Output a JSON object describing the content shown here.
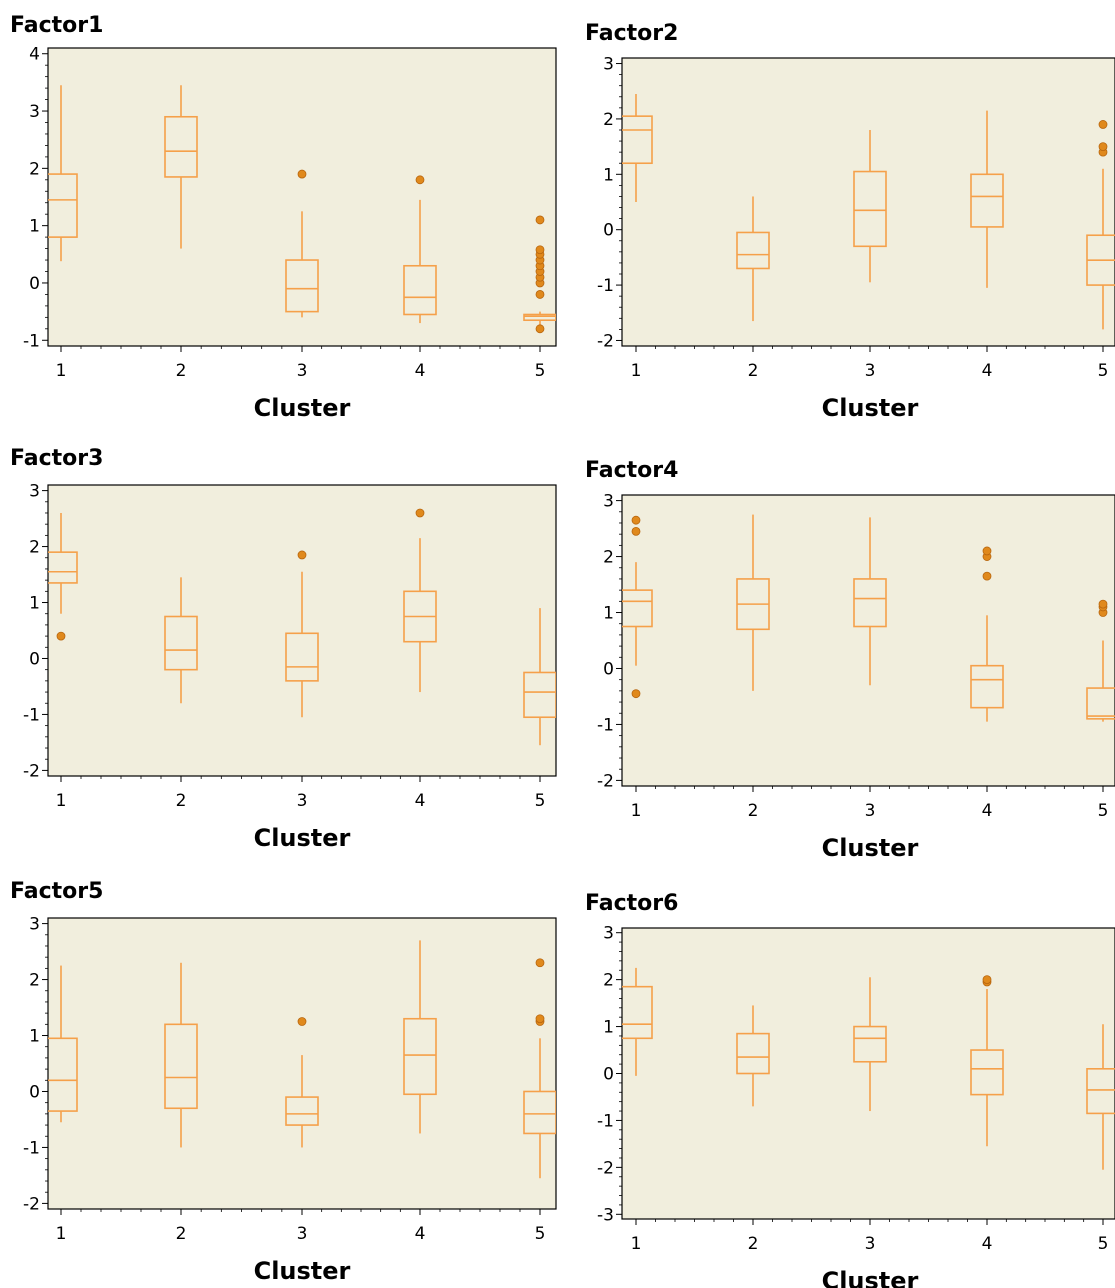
{
  "chart_data": [
    {
      "type": "box",
      "title": "Factor1",
      "xlabel": "Cluster",
      "categories": [
        "1",
        "2",
        "3",
        "4",
        "5"
      ],
      "ylim": [
        -1.1,
        4.1
      ],
      "yticks": [
        "-1",
        "0",
        "1",
        "2",
        "3",
        "4"
      ],
      "grid": false,
      "background": "#f1eedd",
      "color": "#f5a04a",
      "boxes": [
        {
          "min": 0.38,
          "q1": 0.8,
          "median": 1.45,
          "q3": 1.9,
          "max": 3.45,
          "outliers": []
        },
        {
          "min": 0.6,
          "q1": 1.85,
          "median": 2.3,
          "q3": 2.9,
          "max": 3.45,
          "outliers": []
        },
        {
          "min": -0.6,
          "q1": -0.5,
          "median": -0.1,
          "q3": 0.4,
          "max": 1.25,
          "outliers": [
            1.9
          ]
        },
        {
          "min": -0.7,
          "q1": -0.55,
          "median": -0.25,
          "q3": 0.3,
          "max": 1.45,
          "outliers": [
            1.8
          ]
        },
        {
          "min": -0.85,
          "q1": -0.65,
          "median": -0.58,
          "q3": -0.55,
          "max": -0.5,
          "outliers": [
            -0.8,
            -0.2,
            0.0,
            0.1,
            0.2,
            0.3,
            0.4,
            0.5,
            0.58,
            1.1
          ]
        }
      ]
    },
    {
      "type": "box",
      "title": "Factor2",
      "xlabel": "Cluster",
      "categories": [
        "1",
        "2",
        "3",
        "4",
        "5"
      ],
      "ylim": [
        -2.1,
        3.1
      ],
      "yticks": [
        "-2",
        "-1",
        "0",
        "1",
        "2",
        "3"
      ],
      "grid": false,
      "background": "#f1eedd",
      "color": "#f5a04a",
      "boxes": [
        {
          "min": 0.5,
          "q1": 1.2,
          "median": 1.8,
          "q3": 2.05,
          "max": 2.45,
          "outliers": []
        },
        {
          "min": -1.65,
          "q1": -0.7,
          "median": -0.45,
          "q3": -0.05,
          "max": 0.6,
          "outliers": []
        },
        {
          "min": -0.95,
          "q1": -0.3,
          "median": 0.35,
          "q3": 1.05,
          "max": 1.8,
          "outliers": []
        },
        {
          "min": -1.05,
          "q1": 0.05,
          "median": 0.6,
          "q3": 1.0,
          "max": 2.15,
          "outliers": []
        },
        {
          "min": -1.8,
          "q1": -1.0,
          "median": -0.55,
          "q3": -0.1,
          "max": 1.1,
          "outliers": [
            1.4,
            1.5,
            1.9
          ]
        }
      ]
    },
    {
      "type": "box",
      "title": "Factor3",
      "xlabel": "Cluster",
      "categories": [
        "1",
        "2",
        "3",
        "4",
        "5"
      ],
      "ylim": [
        -2.1,
        3.1
      ],
      "yticks": [
        "-2",
        "-1",
        "0",
        "1",
        "2",
        "3"
      ],
      "grid": false,
      "background": "#f1eedd",
      "color": "#f5a04a",
      "boxes": [
        {
          "min": 0.8,
          "q1": 1.35,
          "median": 1.55,
          "q3": 1.9,
          "max": 2.6,
          "outliers": [
            0.4
          ]
        },
        {
          "min": -0.8,
          "q1": -0.2,
          "median": 0.15,
          "q3": 0.75,
          "max": 1.45,
          "outliers": []
        },
        {
          "min": -1.05,
          "q1": -0.4,
          "median": -0.15,
          "q3": 0.45,
          "max": 1.55,
          "outliers": [
            1.85
          ]
        },
        {
          "min": -0.6,
          "q1": 0.3,
          "median": 0.75,
          "q3": 1.2,
          "max": 2.15,
          "outliers": [
            2.6
          ]
        },
        {
          "min": -1.55,
          "q1": -1.05,
          "median": -0.6,
          "q3": -0.25,
          "max": 0.9,
          "outliers": []
        }
      ]
    },
    {
      "type": "box",
      "title": "Factor4",
      "xlabel": "Cluster",
      "categories": [
        "1",
        "2",
        "3",
        "4",
        "5"
      ],
      "ylim": [
        -2.1,
        3.1
      ],
      "yticks": [
        "-2",
        "-1",
        "0",
        "1",
        "2",
        "3"
      ],
      "grid": false,
      "background": "#f1eedd",
      "color": "#f5a04a",
      "boxes": [
        {
          "min": 0.05,
          "q1": 0.75,
          "median": 1.2,
          "q3": 1.4,
          "max": 1.9,
          "outliers": [
            -0.45,
            2.45,
            2.65
          ]
        },
        {
          "min": -0.4,
          "q1": 0.7,
          "median": 1.15,
          "q3": 1.6,
          "max": 2.75,
          "outliers": []
        },
        {
          "min": -0.3,
          "q1": 0.75,
          "median": 1.25,
          "q3": 1.6,
          "max": 2.7,
          "outliers": []
        },
        {
          "min": -0.95,
          "q1": -0.7,
          "median": -0.2,
          "q3": 0.05,
          "max": 0.95,
          "outliers": [
            1.65,
            2.0,
            2.1
          ]
        },
        {
          "min": -0.95,
          "q1": -0.9,
          "median": -0.85,
          "q3": -0.35,
          "max": 0.5,
          "outliers": [
            1.0,
            1.1,
            1.15
          ]
        }
      ]
    },
    {
      "type": "box",
      "title": "Factor5",
      "xlabel": "Cluster",
      "categories": [
        "1",
        "2",
        "3",
        "4",
        "5"
      ],
      "ylim": [
        -2.1,
        3.1
      ],
      "yticks": [
        "-2",
        "-1",
        "0",
        "1",
        "2",
        "3"
      ],
      "grid": false,
      "background": "#f1eedd",
      "color": "#f5a04a",
      "boxes": [
        {
          "min": -0.55,
          "q1": -0.35,
          "median": 0.2,
          "q3": 0.95,
          "max": 2.25,
          "outliers": []
        },
        {
          "min": -1.0,
          "q1": -0.3,
          "median": 0.25,
          "q3": 1.2,
          "max": 2.3,
          "outliers": []
        },
        {
          "min": -1.0,
          "q1": -0.6,
          "median": -0.4,
          "q3": -0.1,
          "max": 0.65,
          "outliers": [
            1.25
          ]
        },
        {
          "min": -0.75,
          "q1": -0.05,
          "median": 0.65,
          "q3": 1.3,
          "max": 2.7,
          "outliers": []
        },
        {
          "min": -1.55,
          "q1": -0.75,
          "median": -0.4,
          "q3": 0.0,
          "max": 0.95,
          "outliers": [
            1.25,
            1.3,
            2.3
          ]
        }
      ]
    },
    {
      "type": "box",
      "title": "Factor6",
      "xlabel": "Cluster",
      "categories": [
        "1",
        "2",
        "3",
        "4",
        "5"
      ],
      "ylim": [
        -3.1,
        3.1
      ],
      "yticks": [
        "-3",
        "-2",
        "-1",
        "0",
        "1",
        "2",
        "3"
      ],
      "grid": false,
      "background": "#f1eedd",
      "color": "#f5a04a",
      "boxes": [
        {
          "min": -0.05,
          "q1": 0.75,
          "median": 1.05,
          "q3": 1.85,
          "max": 2.25,
          "outliers": []
        },
        {
          "min": -0.7,
          "q1": 0.0,
          "median": 0.35,
          "q3": 0.85,
          "max": 1.45,
          "outliers": []
        },
        {
          "min": -0.8,
          "q1": 0.25,
          "median": 0.75,
          "q3": 1.0,
          "max": 2.05,
          "outliers": []
        },
        {
          "min": -1.55,
          "q1": -0.45,
          "median": 0.1,
          "q3": 0.5,
          "max": 1.8,
          "outliers": [
            1.95,
            2.0
          ]
        },
        {
          "min": -2.05,
          "q1": -0.85,
          "median": -0.35,
          "q3": 0.1,
          "max": 1.05,
          "outliers": []
        }
      ]
    }
  ]
}
